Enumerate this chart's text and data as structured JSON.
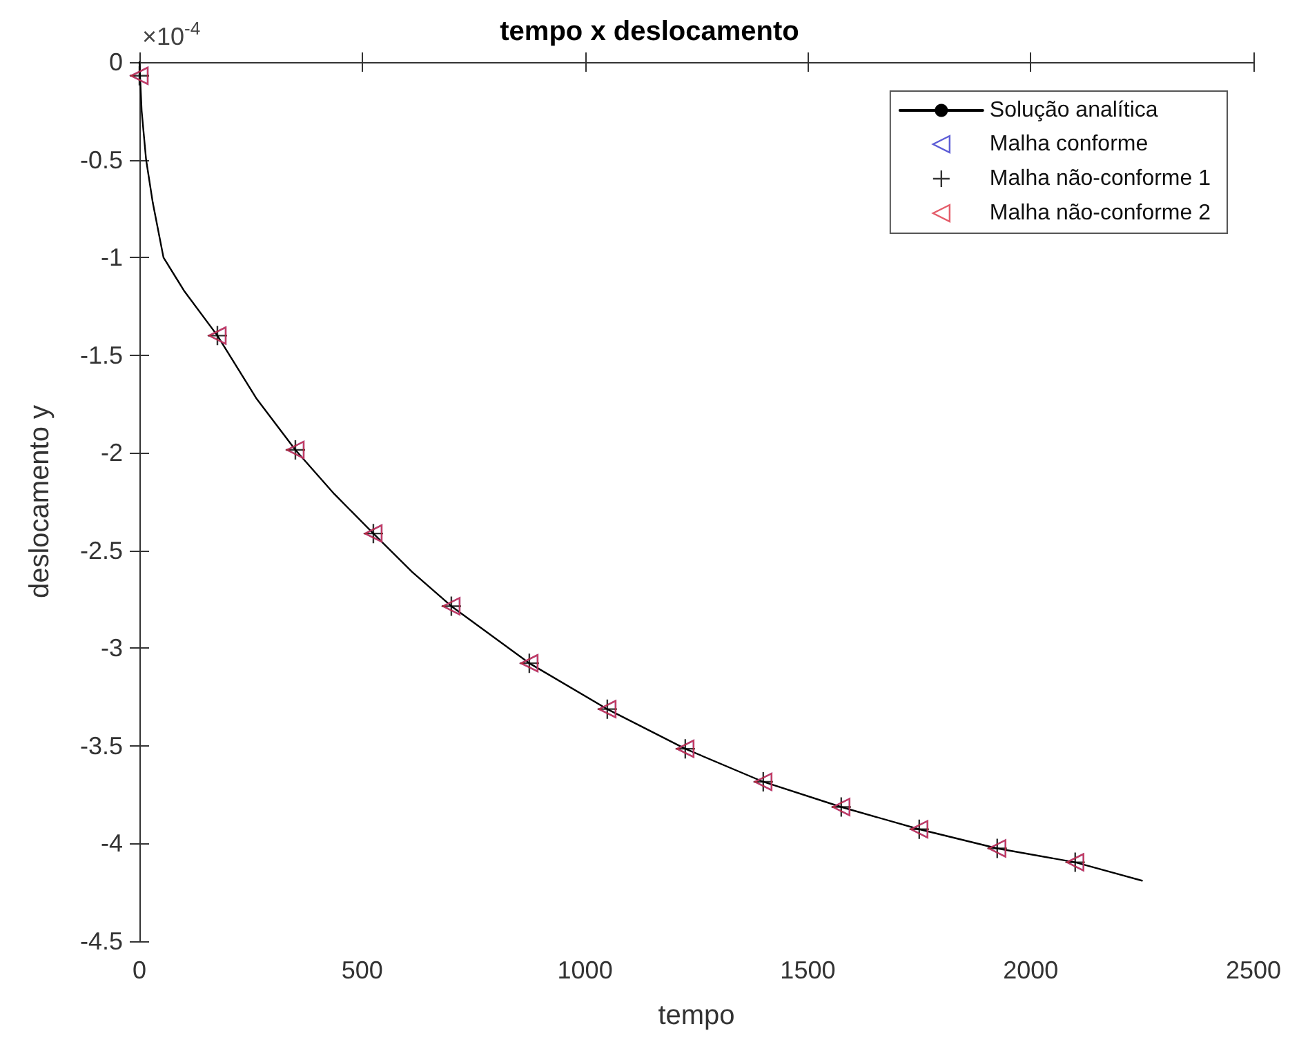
{
  "chart_data": {
    "type": "line",
    "title": "tempo x deslocamento",
    "xlabel": "tempo",
    "ylabel": "deslocamento y",
    "annotations": [
      "×10$^{-4}$"
    ],
    "xlim": [
      0,
      2500
    ],
    "xticks": [
      0,
      500,
      1000,
      1500,
      2000,
      2500
    ],
    "ylim": [
      -4.5,
      0
    ],
    "yticks": [
      -4.5,
      -4,
      -3.5,
      -3,
      -2.5,
      -2,
      -1.5,
      -1,
      -0.5,
      0
    ],
    "grid": false,
    "legend": "top right",
    "series": [
      {
        "name": "Solução analítica",
        "color": "#000000",
        "marker": "none",
        "line_style": "solid",
        "x": [
          0,
          2,
          5,
          15,
          30,
          54,
          100,
          175,
          262,
          350,
          437,
          525,
          612,
          700,
          875,
          1050,
          1225,
          1400,
          1575,
          1750,
          1925,
          2100,
          2250
        ],
        "values": [
          0,
          -0.1,
          -0.25,
          -0.5,
          -0.72,
          -1.0,
          -1.17,
          -1.4,
          -1.72,
          -1.985,
          -2.21,
          -2.413,
          -2.61,
          -2.785,
          -3.077,
          -3.312,
          -3.515,
          -3.684,
          -3.813,
          -3.927,
          -4.025,
          -4.096,
          -4.19
        ]
      },
      {
        "name": "Malha conforme",
        "type": "scatter",
        "color": "#3333cc",
        "marker": "triangle",
        "x": [
          0,
          175,
          350,
          525,
          700,
          875,
          1050,
          1225,
          1400,
          1575,
          1750,
          1925,
          2100
        ],
        "values": [
          -0.07,
          -1.4,
          -1.985,
          -2.413,
          -2.785,
          -3.077,
          -3.312,
          -3.515,
          -3.684,
          -3.813,
          -3.927,
          -4.025,
          -4.096
        ]
      },
      {
        "name": "Malha não-conforme 1",
        "type": "scatter",
        "color": "#000000",
        "marker": "cross",
        "x": [
          0,
          175,
          350,
          525,
          700,
          875,
          1050,
          1225,
          1400,
          1575,
          1750,
          1925,
          2100
        ],
        "values": [
          -0.07,
          -1.4,
          -1.985,
          -2.413,
          -2.785,
          -3.077,
          -3.312,
          -3.515,
          -3.684,
          -3.813,
          -3.927,
          -4.025,
          -4.096
        ]
      },
      {
        "name": "Malha não-conforme 2",
        "type": "scatter",
        "color": "#dd3344",
        "marker": "triangle",
        "x": [
          0,
          175,
          350,
          525,
          700,
          875,
          1050,
          1225,
          1400,
          1575,
          1750,
          1925,
          2100
        ],
        "values": [
          -0.07,
          -1.4,
          -1.985,
          -2.413,
          -2.785,
          -3.077,
          -3.312,
          -3.515,
          -3.684,
          -3.813,
          -3.927,
          -4.025,
          -4.096
        ]
      }
    ]
  }
}
